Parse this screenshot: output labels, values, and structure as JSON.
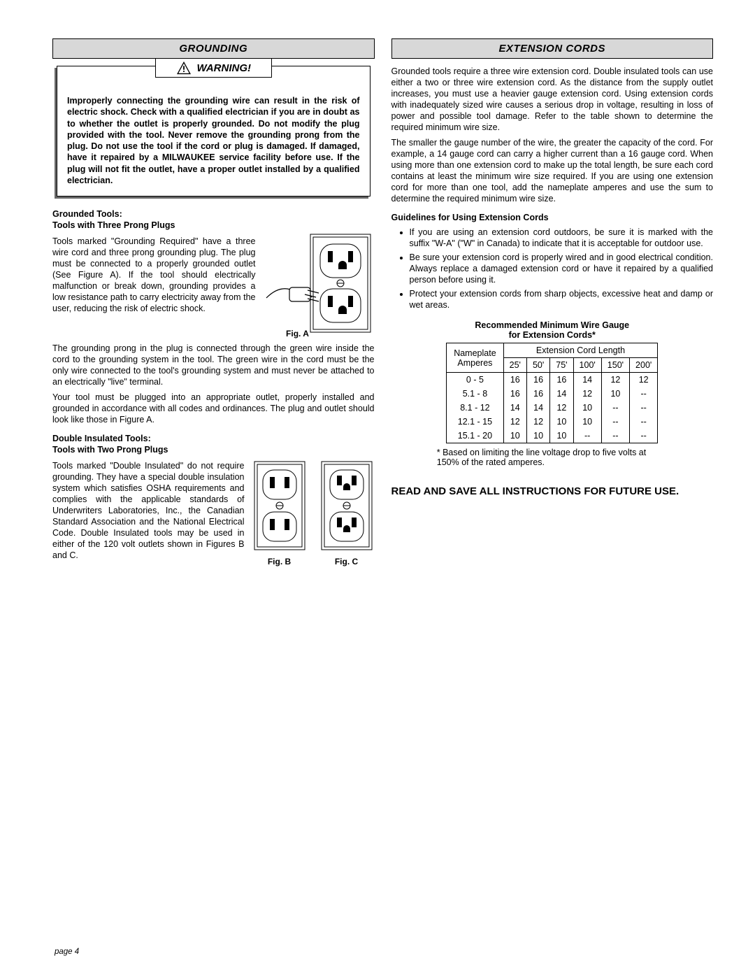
{
  "left": {
    "header": "GROUNDING",
    "warning_label": "WARNING!",
    "warning_text": "Improperly connecting the grounding wire can result in the risk of electric shock. Check with a qualified electrician if you are in doubt as to whether the outlet is properly grounded. Do not modify the plug provided with the tool. Never remove the grounding prong from the plug. Do not use the tool if the cord or plug is damaged. If damaged, have it repaired by a MILWAUKEE service facility before use. If the plug will not fit the outlet, have a proper outlet installed by a qualified electrician.",
    "grounded_head1": "Grounded Tools:",
    "grounded_head2": "Tools with Three Prong Plugs",
    "grounded_p1": "Tools marked \"Grounding Required\" have a three wire cord and three prong grounding plug. The plug must be connected to a properly grounded outlet (See Figure A). If the tool should electrically malfunction or break down, grounding provides a low resistance path to carry electricity away from the user, reducing the risk of electric shock.",
    "figA": "Fig. A",
    "grounded_p2": "The grounding prong in the plug is connected through the green wire inside the cord to the grounding system in the tool. The green wire in the cord must be the only wire connected to the tool's grounding system and must never be attached to an electrically \"live\" terminal.",
    "grounded_p3": "Your tool must be plugged into an appropriate outlet, properly installed and grounded in accordance with all codes and ordinances. The plug and outlet should look like those in Figure A.",
    "double_head1": "Double Insulated Tools:",
    "double_head2": "Tools with Two Prong Plugs",
    "double_p1": "Tools marked \"Double Insulated\" do not require grounding. They have a special double insulation system which satisfies OSHA requirements and complies with the applicable standards of Underwriters Laboratories, Inc., the Canadian Standard Association and the National Electrical Code. Double Insulated tools may be used in either of the 120 volt outlets shown in Figures B and C.",
    "figB": "Fig. B",
    "figC": "Fig. C"
  },
  "right": {
    "header": "EXTENSION CORDS",
    "p1": "Grounded tools require a three wire extension cord. Double insulated tools can use either a two or three wire extension cord. As the distance from the supply outlet increases, you must use a heavier gauge extension cord. Using extension cords with inadequately sized wire causes a serious drop in voltage, resulting in loss of power and possible tool damage. Refer to the table shown to determine the required minimum wire size.",
    "p2": "The smaller the gauge number of the wire, the greater the capacity of the cord. For example, a 14 gauge cord can carry a higher current than a 16 gauge cord. When using more than one extension cord to make up the total length, be sure each cord contains at least the minimum wire size required. If you are using one extension cord for more than one tool, add the nameplate amperes and use the sum to determine the required minimum wire size.",
    "guidelines_head": "Guidelines for Using Extension Cords",
    "b1": "If you are using an extension cord outdoors, be sure it is marked with the suffix \"W-A\" (\"W\" in Canada) to indicate that it is acceptable for outdoor use.",
    "b2": "Be sure your extension cord is properly wired and in good electrical condition. Always replace a damaged extension cord or have it repaired by a qualified person before using it.",
    "b3": "Protect your extension cords from sharp objects, excessive heat and damp or wet areas.",
    "table_title1": "Recommended Minimum Wire Gauge",
    "table_title2": "for Extension Cords*",
    "table": {
      "row_head1": "Nameplate",
      "row_head2": "Amperes",
      "col_head": "Extension Cord Length",
      "lengths": [
        "25'",
        "50'",
        "75'",
        "100'",
        "150'",
        "200'"
      ],
      "rows": [
        {
          "amps": "0 - 5",
          "g": [
            "16",
            "16",
            "16",
            "14",
            "12",
            "12"
          ]
        },
        {
          "amps": "5.1 - 8",
          "g": [
            "16",
            "16",
            "14",
            "12",
            "10",
            "--"
          ]
        },
        {
          "amps": "8.1 - 12",
          "g": [
            "14",
            "14",
            "12",
            "10",
            "--",
            "--"
          ]
        },
        {
          "amps": "12.1 - 15",
          "g": [
            "12",
            "12",
            "10",
            "10",
            "--",
            "--"
          ]
        },
        {
          "amps": "15.1 - 20",
          "g": [
            "10",
            "10",
            "10",
            "--",
            "--",
            "--"
          ]
        }
      ]
    },
    "table_note": "* Based on limiting the line voltage drop to five volts at 150% of the rated amperes.",
    "final": "READ AND SAVE ALL INSTRUCTIONS FOR FUTURE USE."
  },
  "page_num": "page 4"
}
